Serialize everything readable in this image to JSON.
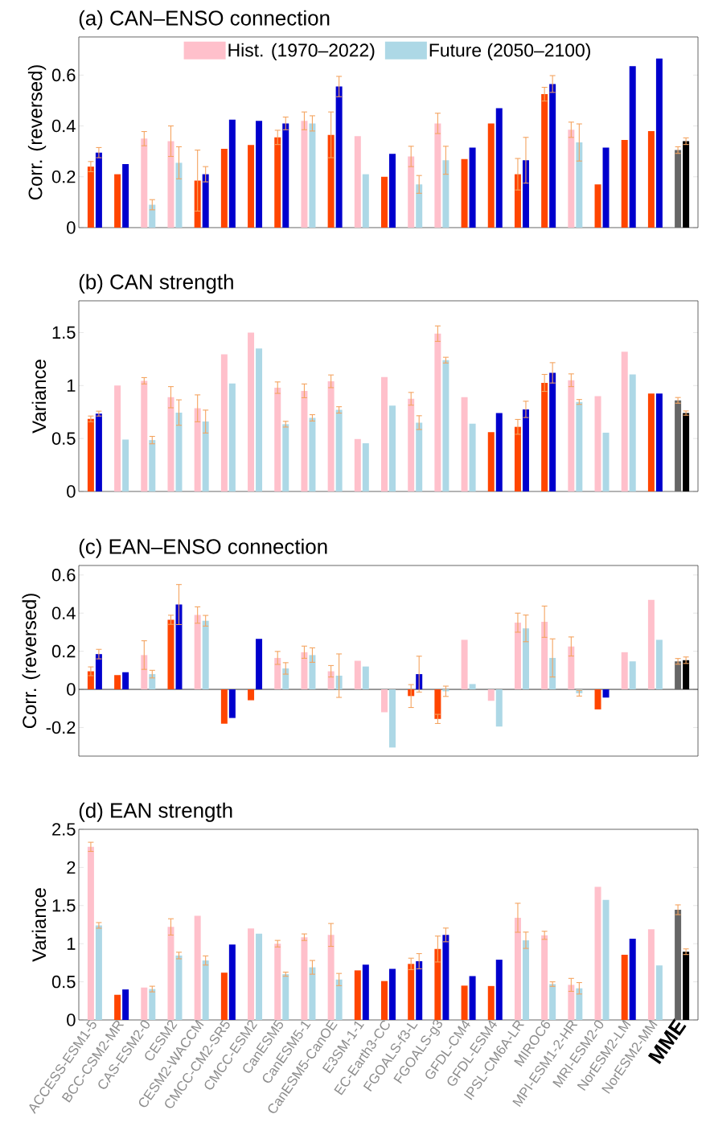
{
  "chart_data": [
    {
      "type": "bar",
      "title": "(a) CAN–ENSO connection",
      "ylabel": "Corr. (reversed)",
      "ylim": [
        0,
        0.75
      ],
      "yticks": [
        0,
        0.2,
        0.4,
        0.6
      ],
      "tick_labels": "y",
      "legend": "top",
      "categories": [
        null,
        null,
        null,
        null,
        null,
        null,
        null,
        null,
        null,
        null,
        null,
        null,
        null,
        null,
        null,
        null,
        null,
        null,
        null,
        null,
        null,
        null,
        null
      ],
      "series": [
        {
          "name": "Hist. (1970–2022)",
          "color": "#ffc0cb",
          "values": [
            0.24,
            0.21,
            0.35,
            0.34,
            0.185,
            0.31,
            0.325,
            0.355,
            0.42,
            0.365,
            0.36,
            0.2,
            0.28,
            0.41,
            0.27,
            0.41,
            0.21,
            0.525,
            0.385,
            0.17,
            0.345,
            0.38,
            0.305
          ],
          "errors": [
            0.02,
            null,
            0.028,
            0.06,
            0.12,
            null,
            null,
            0.028,
            0.035,
            0.09,
            null,
            null,
            0.04,
            0.04,
            null,
            null,
            0.062,
            0.027,
            0.03,
            null,
            null,
            null,
            0.013
          ],
          "colors": [
            "#ff4500",
            "#ff4500",
            "#ffc0cb",
            "#ffc0cb",
            "#ff4500",
            "#ff4500",
            "#ff4500",
            "#ff4500",
            "#ffc0cb",
            "#ff4500",
            "#ffc0cb",
            "#ff4500",
            "#ffc0cb",
            "#ffc0cb",
            "#ff4500",
            "#ff4500",
            "#ff4500",
            "#ff4500",
            "#ffc0cb",
            "#ff4500",
            "#ff4500",
            "#ff4500",
            "#666666"
          ]
        },
        {
          "name": "Future (2050–2100)",
          "color": "#add8e6",
          "values": [
            0.295,
            0.25,
            0.09,
            0.255,
            0.21,
            0.425,
            0.42,
            0.41,
            0.41,
            0.555,
            0.21,
            0.29,
            0.17,
            0.265,
            0.315,
            0.47,
            0.265,
            0.565,
            0.335,
            0.315,
            0.635,
            0.665,
            0.34
          ],
          "errors": [
            0.02,
            null,
            0.02,
            0.063,
            0.03,
            null,
            null,
            0.025,
            0.03,
            0.04,
            null,
            null,
            0.035,
            0.055,
            null,
            null,
            0.09,
            0.033,
            0.073,
            null,
            null,
            null,
            0.013
          ],
          "colors": [
            "#0000cd",
            "#0000cd",
            "#add8e6",
            "#add8e6",
            "#0000cd",
            "#0000cd",
            "#0000cd",
            "#0000cd",
            "#add8e6",
            "#0000cd",
            "#add8e6",
            "#0000cd",
            "#add8e6",
            "#add8e6",
            "#0000cd",
            "#0000cd",
            "#0000cd",
            "#0000cd",
            "#add8e6",
            "#0000cd",
            "#0000cd",
            "#0000cd",
            "#000000"
          ]
        }
      ]
    },
    {
      "type": "bar",
      "title": "(b) CAN strength",
      "ylabel": "Variance",
      "ylim": [
        0,
        1.8
      ],
      "yticks": [
        0,
        0.5,
        1,
        1.5
      ],
      "tick_labels": "y",
      "categories": [
        null,
        null,
        null,
        null,
        null,
        null,
        null,
        null,
        null,
        null,
        null,
        null,
        null,
        null,
        null,
        null,
        null,
        null,
        null,
        null,
        null,
        null,
        null
      ],
      "series": [
        {
          "values": [
            0.685,
            1.0,
            1.045,
            0.89,
            0.785,
            1.295,
            1.5,
            0.98,
            0.95,
            1.04,
            0.495,
            1.08,
            0.875,
            1.49,
            0.89,
            0.56,
            0.61,
            1.025,
            1.05,
            0.9,
            1.32,
            0.925,
            0.86
          ],
          "errors": [
            0.027,
            null,
            0.03,
            0.1,
            0.127,
            null,
            null,
            0.054,
            0.065,
            0.06,
            null,
            null,
            0.06,
            0.073,
            null,
            null,
            0.07,
            0.08,
            0.06,
            null,
            null,
            null,
            0.027
          ],
          "colors": [
            "#ff4500",
            "#ffc0cb",
            "#ffc0cb",
            "#ffc0cb",
            "#ffc0cb",
            "#ffc0cb",
            "#ffc0cb",
            "#ffc0cb",
            "#ffc0cb",
            "#ffc0cb",
            "#ffc0cb",
            "#ffc0cb",
            "#ffc0cb",
            "#ffc0cb",
            "#ffc0cb",
            "#ff4500",
            "#ff4500",
            "#ff4500",
            "#ffc0cb",
            "#ffc0cb",
            "#ffc0cb",
            "#ff4500",
            "#666666"
          ]
        },
        {
          "values": [
            0.735,
            0.49,
            0.485,
            0.745,
            0.66,
            1.02,
            1.35,
            0.635,
            0.695,
            0.77,
            0.455,
            0.81,
            0.65,
            1.24,
            0.64,
            0.74,
            0.775,
            1.12,
            0.845,
            0.555,
            1.105,
            0.925,
            0.74
          ],
          "errors": [
            0.023,
            null,
            0.035,
            0.12,
            0.108,
            null,
            null,
            0.027,
            0.03,
            0.03,
            null,
            null,
            0.065,
            0.027,
            null,
            null,
            0.077,
            0.096,
            0.023,
            null,
            null,
            null,
            0.02
          ],
          "colors": [
            "#0000cd",
            "#add8e6",
            "#add8e6",
            "#add8e6",
            "#add8e6",
            "#add8e6",
            "#add8e6",
            "#add8e6",
            "#add8e6",
            "#add8e6",
            "#add8e6",
            "#add8e6",
            "#add8e6",
            "#add8e6",
            "#add8e6",
            "#0000cd",
            "#0000cd",
            "#0000cd",
            "#add8e6",
            "#add8e6",
            "#add8e6",
            "#0000cd",
            "#000000"
          ]
        }
      ]
    },
    {
      "type": "bar",
      "title": "(c) EAN–ENSO connection",
      "ylabel": "Corr. (reversed)",
      "ylim": [
        -0.35,
        0.65
      ],
      "yticks": [
        -0.2,
        0,
        0.2,
        0.4,
        0.6
      ],
      "tick_labels": "y",
      "categories": [
        null,
        null,
        null,
        null,
        null,
        null,
        null,
        null,
        null,
        null,
        null,
        null,
        null,
        null,
        null,
        null,
        null,
        null,
        null,
        null,
        null,
        null,
        null
      ],
      "series": [
        {
          "values": [
            0.095,
            0.075,
            0.18,
            0.365,
            0.39,
            -0.18,
            -0.057,
            0.165,
            0.195,
            0.095,
            0.15,
            -0.12,
            -0.035,
            -0.155,
            0.26,
            -0.06,
            0.35,
            0.355,
            0.225,
            -0.105,
            0.195,
            0.47,
            0.147
          ],
          "errors": [
            0.023,
            null,
            0.075,
            0.024,
            0.043,
            null,
            null,
            0.034,
            0.032,
            0.03,
            null,
            null,
            0.06,
            0.024,
            null,
            null,
            0.05,
            0.082,
            0.05,
            null,
            null,
            null,
            0.015
          ],
          "colors": [
            "#ff4500",
            "#ff4500",
            "#ffc0cb",
            "#ff4500",
            "#ffc0cb",
            "#ff4500",
            "#ff4500",
            "#ffc0cb",
            "#ffc0cb",
            "#ffc0cb",
            "#ffc0cb",
            "#ffc0cb",
            "#ff4500",
            "#ff4500",
            "#ffc0cb",
            "#ffc0cb",
            "#ffc0cb",
            "#ffc0cb",
            "#ffc0cb",
            "#ff4500",
            "#ffc0cb",
            "#ffc0cb",
            "#666666"
          ]
        },
        {
          "values": [
            0.185,
            0.09,
            0.08,
            0.445,
            0.36,
            -0.15,
            0.265,
            0.11,
            0.18,
            0.072,
            0.12,
            -0.305,
            0.08,
            -0.01,
            0.028,
            -0.195,
            0.32,
            0.165,
            -0.02,
            -0.043,
            0.147,
            0.26,
            0.153
          ],
          "errors": [
            0.025,
            null,
            0.02,
            0.105,
            0.028,
            null,
            null,
            0.03,
            0.038,
            0.114,
            null,
            null,
            0.094,
            0.027,
            null,
            null,
            0.07,
            0.1,
            0.015,
            null,
            null,
            null,
            0.017
          ],
          "colors": [
            "#0000cd",
            "#0000cd",
            "#add8e6",
            "#0000cd",
            "#add8e6",
            "#0000cd",
            "#0000cd",
            "#add8e6",
            "#add8e6",
            "#add8e6",
            "#add8e6",
            "#add8e6",
            "#0000cd",
            "#add8e6",
            "#add8e6",
            "#add8e6",
            "#add8e6",
            "#add8e6",
            "#add8e6",
            "#0000cd",
            "#add8e6",
            "#add8e6",
            "#000000"
          ]
        }
      ]
    },
    {
      "type": "bar",
      "title": "(d) EAN strength",
      "ylabel": "Variance",
      "ylim": [
        0,
        2.5
      ],
      "yticks": [
        0,
        0.5,
        1,
        1.5,
        2,
        2.5
      ],
      "categories": [
        "ACCESS-ESM1-5",
        "BCC-CSM2-MR",
        "CAS-ESM2-0",
        "CESM2",
        "CESM2-WACCM",
        "CMCC-CM2-SR5",
        "CMCC-ESM2",
        "CanESM5",
        "CanESM5-1",
        "CanESM5-CanOE",
        "E3SM-1-1",
        "EC-Earth3-CC",
        "FGOALS-f3-L",
        "FGOALS-g3",
        "GFDL-CM4",
        "GFDL-ESM4",
        "IPSL-CM6A-LR",
        "MIROC6",
        "MPI-ESM1-2-HR",
        "MRI-ESM2-0",
        "NorESM2-LM",
        "NorESM2-MM",
        "MME"
      ],
      "series": [
        {
          "values": [
            2.27,
            0.33,
            0.425,
            1.22,
            1.365,
            0.62,
            1.2,
            1.0,
            1.085,
            1.115,
            0.65,
            0.51,
            0.735,
            0.93,
            0.45,
            0.445,
            1.34,
            1.11,
            0.46,
            1.745,
            0.855,
            1.19,
            1.445
          ],
          "errors": [
            0.06,
            null,
            null,
            0.107,
            null,
            null,
            null,
            0.043,
            0.043,
            0.15,
            null,
            null,
            0.075,
            0.17,
            null,
            null,
            0.19,
            0.053,
            0.085,
            null,
            null,
            null,
            0.064
          ],
          "colors": [
            "#ffc0cb",
            "#ff4500",
            "#ffc0cb",
            "#ffc0cb",
            "#ffc0cb",
            "#ff4500",
            "#ffc0cb",
            "#ffc0cb",
            "#ffc0cb",
            "#ffc0cb",
            "#ff4500",
            "#ff4500",
            "#ff4500",
            "#ff4500",
            "#ff4500",
            "#ff4500",
            "#ffc0cb",
            "#ffc0cb",
            "#ffc0cb",
            "#ffc0cb",
            "#ff4500",
            "#ffc0cb",
            "#666666"
          ]
        },
        {
          "values": [
            1.24,
            0.4,
            0.405,
            0.845,
            0.78,
            0.99,
            1.13,
            0.6,
            0.69,
            0.53,
            0.725,
            0.67,
            0.77,
            1.115,
            0.575,
            0.79,
            1.045,
            0.47,
            0.415,
            1.575,
            1.065,
            0.715,
            0.895
          ],
          "errors": [
            0.037,
            null,
            0.037,
            0.043,
            0.06,
            null,
            null,
            0.027,
            0.09,
            0.08,
            null,
            null,
            0.1,
            0.09,
            null,
            null,
            0.107,
            0.03,
            0.075,
            null,
            null,
            null,
            0.037
          ],
          "colors": [
            "#add8e6",
            "#0000cd",
            "#add8e6",
            "#add8e6",
            "#add8e6",
            "#0000cd",
            "#add8e6",
            "#add8e6",
            "#add8e6",
            "#add8e6",
            "#0000cd",
            "#0000cd",
            "#0000cd",
            "#0000cd",
            "#0000cd",
            "#0000cd",
            "#add8e6",
            "#add8e6",
            "#add8e6",
            "#add8e6",
            "#0000cd",
            "#add8e6",
            "#000000"
          ]
        }
      ]
    }
  ]
}
